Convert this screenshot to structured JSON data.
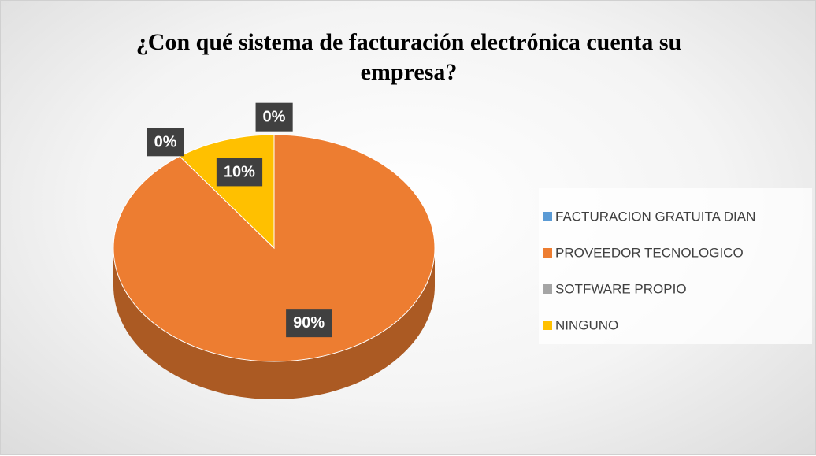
{
  "chart_data": {
    "type": "pie",
    "title": "¿Con qué sistema de facturación electrónica cuenta su empresa?",
    "categories": [
      "FACTURACION GRATUITA DIAN",
      "PROVEEDOR TECNOLOGICO",
      "SOTFWARE PROPIO",
      "NINGUNO"
    ],
    "values": [
      0,
      90,
      0,
      10
    ],
    "value_labels": [
      "0%",
      "90%",
      "0%",
      "10%"
    ],
    "colors": [
      "#5b9bd5",
      "#ed7d31",
      "#a5a5a5",
      "#ffc000"
    ],
    "legend": "right",
    "three_d": true
  }
}
